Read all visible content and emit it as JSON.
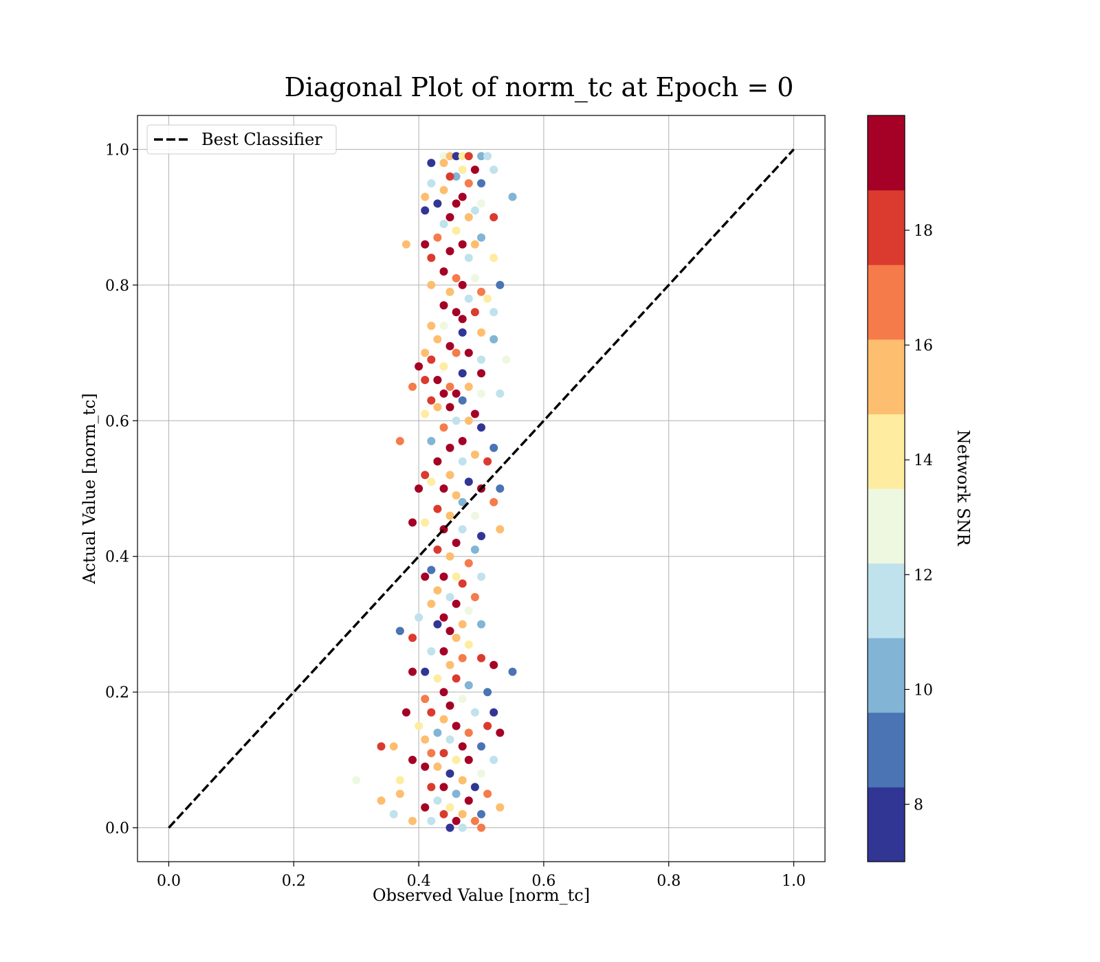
{
  "chart_data": {
    "type": "scatter",
    "title": "Diagonal Plot of norm_tc at Epoch = 0",
    "xlabel": "Observed Value [norm_tc]",
    "ylabel": "Actual Value [norm_tc]",
    "xlim": [
      -0.05,
      1.05
    ],
    "ylim": [
      -0.05,
      1.05
    ],
    "xticks": [
      0.0,
      0.2,
      0.4,
      0.6,
      0.8,
      1.0
    ],
    "yticks": [
      0.0,
      0.2,
      0.4,
      0.6,
      0.8,
      1.0
    ],
    "xtick_labels": [
      "0.0",
      "0.2",
      "0.4",
      "0.6",
      "0.8",
      "1.0"
    ],
    "ytick_labels": [
      "0.0",
      "0.2",
      "0.4",
      "0.6",
      "0.8",
      "1.0"
    ],
    "grid": true,
    "legend": {
      "position": "top-left",
      "entries": [
        {
          "label": "Best Classifier",
          "style": "dashed-black-line"
        }
      ]
    },
    "diagonal": {
      "name": "Best Classifier",
      "x": [
        0.0,
        1.0
      ],
      "y": [
        0.0,
        1.0
      ]
    },
    "colorbar": {
      "label": "Network SNR",
      "range": [
        7,
        20
      ],
      "ticks": [
        8,
        10,
        12,
        14,
        16,
        18
      ],
      "tick_labels": [
        "8",
        "10",
        "12",
        "14",
        "16",
        "18"
      ],
      "colors": [
        "#313695",
        "#4a74b4",
        "#81b4d5",
        "#bfe2ed",
        "#eef8e0",
        "#feeca0",
        "#fdbe6f",
        "#f57b4b",
        "#da3b2e",
        "#a50026"
      ]
    },
    "series": [
      {
        "points": [
          [
            0.44,
            0.99,
            13
          ],
          [
            0.45,
            0.99,
            16
          ],
          [
            0.46,
            0.99,
            8
          ],
          [
            0.47,
            0.99,
            14
          ],
          [
            0.48,
            0.99,
            18
          ],
          [
            0.5,
            0.99,
            10
          ],
          [
            0.51,
            0.99,
            12
          ],
          [
            0.42,
            0.98,
            8
          ],
          [
            0.44,
            0.98,
            16
          ],
          [
            0.47,
            0.97,
            14
          ],
          [
            0.49,
            0.97,
            20
          ],
          [
            0.52,
            0.97,
            12
          ],
          [
            0.46,
            0.96,
            10
          ],
          [
            0.45,
            0.96,
            18
          ],
          [
            0.48,
            0.95,
            17
          ],
          [
            0.5,
            0.95,
            9
          ],
          [
            0.42,
            0.95,
            12
          ],
          [
            0.44,
            0.94,
            15
          ],
          [
            0.47,
            0.93,
            20
          ],
          [
            0.55,
            0.93,
            10
          ],
          [
            0.41,
            0.93,
            16
          ],
          [
            0.43,
            0.92,
            8
          ],
          [
            0.46,
            0.92,
            19
          ],
          [
            0.49,
            0.91,
            11
          ],
          [
            0.5,
            0.92,
            13
          ],
          [
            0.41,
            0.91,
            8
          ],
          [
            0.45,
            0.9,
            20
          ],
          [
            0.48,
            0.9,
            15
          ],
          [
            0.52,
            0.9,
            18
          ],
          [
            0.44,
            0.89,
            11
          ],
          [
            0.46,
            0.88,
            14
          ],
          [
            0.5,
            0.87,
            10
          ],
          [
            0.43,
            0.87,
            17
          ],
          [
            0.38,
            0.86,
            15
          ],
          [
            0.41,
            0.86,
            20
          ],
          [
            0.47,
            0.86,
            19
          ],
          [
            0.49,
            0.86,
            16
          ],
          [
            0.45,
            0.85,
            20
          ],
          [
            0.48,
            0.84,
            12
          ],
          [
            0.42,
            0.84,
            18
          ],
          [
            0.52,
            0.84,
            14
          ],
          [
            0.44,
            0.82,
            19
          ],
          [
            0.46,
            0.81,
            17
          ],
          [
            0.49,
            0.81,
            13
          ],
          [
            0.42,
            0.8,
            16
          ],
          [
            0.47,
            0.8,
            20
          ],
          [
            0.53,
            0.8,
            9
          ],
          [
            0.5,
            0.79,
            17
          ],
          [
            0.45,
            0.79,
            15
          ],
          [
            0.48,
            0.78,
            11
          ],
          [
            0.51,
            0.78,
            14
          ],
          [
            0.44,
            0.77,
            19
          ],
          [
            0.46,
            0.76,
            20
          ],
          [
            0.49,
            0.76,
            18
          ],
          [
            0.52,
            0.76,
            12
          ],
          [
            0.47,
            0.75,
            19
          ],
          [
            0.42,
            0.74,
            16
          ],
          [
            0.44,
            0.74,
            13
          ],
          [
            0.5,
            0.73,
            15
          ],
          [
            0.47,
            0.73,
            8
          ],
          [
            0.52,
            0.72,
            10
          ],
          [
            0.43,
            0.72,
            16
          ],
          [
            0.45,
            0.71,
            20
          ],
          [
            0.48,
            0.7,
            19
          ],
          [
            0.41,
            0.7,
            15
          ],
          [
            0.46,
            0.7,
            17
          ],
          [
            0.5,
            0.69,
            11
          ],
          [
            0.54,
            0.69,
            13
          ],
          [
            0.42,
            0.69,
            18
          ],
          [
            0.44,
            0.68,
            14
          ],
          [
            0.47,
            0.67,
            8
          ],
          [
            0.4,
            0.68,
            20
          ],
          [
            0.5,
            0.67,
            20
          ],
          [
            0.43,
            0.66,
            19
          ],
          [
            0.45,
            0.65,
            17
          ],
          [
            0.41,
            0.66,
            18
          ],
          [
            0.39,
            0.65,
            17
          ],
          [
            0.48,
            0.65,
            16
          ],
          [
            0.46,
            0.64,
            20
          ],
          [
            0.44,
            0.64,
            19
          ],
          [
            0.42,
            0.63,
            18
          ],
          [
            0.5,
            0.64,
            13
          ],
          [
            0.53,
            0.64,
            12
          ],
          [
            0.47,
            0.63,
            9
          ],
          [
            0.45,
            0.62,
            20
          ],
          [
            0.43,
            0.62,
            16
          ],
          [
            0.49,
            0.61,
            19
          ],
          [
            0.41,
            0.61,
            14
          ],
          [
            0.46,
            0.6,
            11
          ],
          [
            0.48,
            0.6,
            15
          ],
          [
            0.5,
            0.59,
            8
          ],
          [
            0.44,
            0.59,
            17
          ],
          [
            0.42,
            0.57,
            10
          ],
          [
            0.37,
            0.57,
            17
          ],
          [
            0.47,
            0.57,
            19
          ],
          [
            0.52,
            0.56,
            9
          ],
          [
            0.45,
            0.56,
            20
          ],
          [
            0.49,
            0.55,
            16
          ],
          [
            0.43,
            0.54,
            19
          ],
          [
            0.47,
            0.54,
            12
          ],
          [
            0.51,
            0.54,
            18
          ],
          [
            0.41,
            0.52,
            18
          ],
          [
            0.45,
            0.52,
            16
          ],
          [
            0.48,
            0.51,
            8
          ],
          [
            0.53,
            0.5,
            9
          ],
          [
            0.42,
            0.51,
            14
          ],
          [
            0.5,
            0.5,
            20
          ],
          [
            0.44,
            0.5,
            19
          ],
          [
            0.46,
            0.49,
            15
          ],
          [
            0.4,
            0.5,
            20
          ],
          [
            0.52,
            0.48,
            17
          ],
          [
            0.47,
            0.48,
            10
          ],
          [
            0.43,
            0.47,
            18
          ],
          [
            0.49,
            0.46,
            13
          ],
          [
            0.45,
            0.46,
            16
          ],
          [
            0.41,
            0.45,
            14
          ],
          [
            0.39,
            0.45,
            20
          ],
          [
            0.44,
            0.44,
            19
          ],
          [
            0.47,
            0.44,
            12
          ],
          [
            0.5,
            0.43,
            8
          ],
          [
            0.53,
            0.44,
            15
          ],
          [
            0.46,
            0.42,
            20
          ],
          [
            0.43,
            0.41,
            18
          ],
          [
            0.49,
            0.41,
            10
          ],
          [
            0.45,
            0.4,
            16
          ],
          [
            0.48,
            0.39,
            17
          ],
          [
            0.42,
            0.38,
            9
          ],
          [
            0.44,
            0.37,
            19
          ],
          [
            0.46,
            0.37,
            14
          ],
          [
            0.5,
            0.37,
            12
          ],
          [
            0.41,
            0.37,
            20
          ],
          [
            0.47,
            0.36,
            18
          ],
          [
            0.43,
            0.35,
            16
          ],
          [
            0.45,
            0.34,
            11
          ],
          [
            0.49,
            0.34,
            17
          ],
          [
            0.42,
            0.33,
            15
          ],
          [
            0.46,
            0.33,
            20
          ],
          [
            0.48,
            0.32,
            13
          ],
          [
            0.44,
            0.31,
            19
          ],
          [
            0.4,
            0.31,
            12
          ],
          [
            0.47,
            0.3,
            16
          ],
          [
            0.5,
            0.3,
            10
          ],
          [
            0.43,
            0.3,
            8
          ],
          [
            0.45,
            0.29,
            20
          ],
          [
            0.37,
            0.29,
            9
          ],
          [
            0.39,
            0.28,
            18
          ],
          [
            0.46,
            0.28,
            15
          ],
          [
            0.48,
            0.27,
            14
          ],
          [
            0.44,
            0.26,
            19
          ],
          [
            0.42,
            0.26,
            11
          ],
          [
            0.47,
            0.25,
            17
          ],
          [
            0.5,
            0.25,
            18
          ],
          [
            0.45,
            0.24,
            16
          ],
          [
            0.52,
            0.24,
            20
          ],
          [
            0.39,
            0.23,
            20
          ],
          [
            0.41,
            0.23,
            8
          ],
          [
            0.55,
            0.23,
            9
          ],
          [
            0.43,
            0.22,
            14
          ],
          [
            0.46,
            0.22,
            18
          ],
          [
            0.48,
            0.21,
            10
          ],
          [
            0.44,
            0.2,
            19
          ],
          [
            0.51,
            0.2,
            9
          ],
          [
            0.41,
            0.19,
            17
          ],
          [
            0.47,
            0.19,
            13
          ],
          [
            0.45,
            0.18,
            20
          ],
          [
            0.49,
            0.17,
            11
          ],
          [
            0.42,
            0.17,
            18
          ],
          [
            0.52,
            0.17,
            8
          ],
          [
            0.38,
            0.17,
            19
          ],
          [
            0.44,
            0.16,
            16
          ],
          [
            0.46,
            0.15,
            20
          ],
          [
            0.4,
            0.15,
            14
          ],
          [
            0.51,
            0.15,
            18
          ],
          [
            0.43,
            0.14,
            10
          ],
          [
            0.48,
            0.14,
            17
          ],
          [
            0.53,
            0.14,
            20
          ],
          [
            0.41,
            0.13,
            15
          ],
          [
            0.45,
            0.13,
            12
          ],
          [
            0.47,
            0.12,
            19
          ],
          [
            0.34,
            0.12,
            18
          ],
          [
            0.36,
            0.12,
            16
          ],
          [
            0.5,
            0.12,
            9
          ],
          [
            0.42,
            0.11,
            17
          ],
          [
            0.44,
            0.11,
            18
          ],
          [
            0.46,
            0.1,
            14
          ],
          [
            0.39,
            0.1,
            20
          ],
          [
            0.48,
            0.1,
            20
          ],
          [
            0.52,
            0.1,
            11
          ],
          [
            0.41,
            0.09,
            19
          ],
          [
            0.43,
            0.09,
            16
          ],
          [
            0.45,
            0.08,
            8
          ],
          [
            0.5,
            0.08,
            13
          ],
          [
            0.3,
            0.07,
            13
          ],
          [
            0.37,
            0.07,
            14
          ],
          [
            0.47,
            0.07,
            15
          ],
          [
            0.42,
            0.06,
            18
          ],
          [
            0.44,
            0.06,
            20
          ],
          [
            0.49,
            0.06,
            8
          ],
          [
            0.51,
            0.05,
            17
          ],
          [
            0.46,
            0.05,
            10
          ],
          [
            0.37,
            0.05,
            16
          ],
          [
            0.43,
            0.04,
            12
          ],
          [
            0.34,
            0.04,
            15
          ],
          [
            0.48,
            0.04,
            19
          ],
          [
            0.41,
            0.03,
            20
          ],
          [
            0.45,
            0.03,
            14
          ],
          [
            0.53,
            0.03,
            15
          ],
          [
            0.36,
            0.02,
            11
          ],
          [
            0.44,
            0.02,
            18
          ],
          [
            0.47,
            0.02,
            16
          ],
          [
            0.5,
            0.02,
            9
          ],
          [
            0.39,
            0.01,
            15
          ],
          [
            0.42,
            0.01,
            12
          ],
          [
            0.46,
            0.01,
            20
          ],
          [
            0.49,
            0.01,
            17
          ],
          [
            0.45,
            0.0,
            8
          ],
          [
            0.47,
            0.0,
            11
          ],
          [
            0.5,
            0.0,
            17
          ]
        ]
      }
    ]
  }
}
